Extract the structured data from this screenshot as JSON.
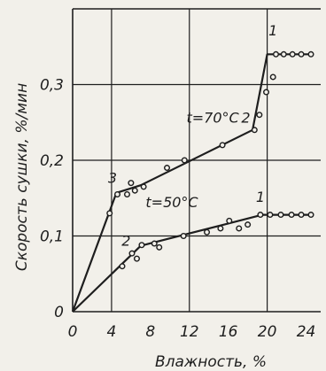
{
  "chart_data": {
    "type": "line",
    "xlabel": "Влажность, %",
    "ylabel": "Скорость сушки, %/мин",
    "xlim": [
      0,
      25.5
    ],
    "ylim": [
      0,
      0.4
    ],
    "x_ticks": [
      0,
      4,
      8,
      12,
      16,
      20,
      24
    ],
    "x_tick_labels": [
      "0",
      "4",
      "8",
      "12",
      "16",
      "20",
      "24"
    ],
    "y_ticks": [
      0,
      0.1,
      0.2,
      0.3
    ],
    "y_tick_labels": [
      "0",
      "0,1",
      "0,2",
      "0,3"
    ],
    "grid": true,
    "series": [
      {
        "name": "t=70°C",
        "line": [
          [
            0,
            0
          ],
          [
            4.5,
            0.157
          ],
          [
            7,
            0.167
          ],
          [
            18.5,
            0.24
          ],
          [
            20,
            0.34
          ],
          [
            24.5,
            0.34
          ]
        ],
        "points": [
          [
            3.8,
            0.13
          ],
          [
            4.6,
            0.155
          ],
          [
            5.6,
            0.155
          ],
          [
            6,
            0.17
          ],
          [
            6.4,
            0.16
          ],
          [
            7.3,
            0.165
          ],
          [
            9.7,
            0.19
          ],
          [
            11.5,
            0.2
          ],
          [
            15.4,
            0.22
          ],
          [
            18.7,
            0.24
          ],
          [
            19.2,
            0.26
          ],
          [
            19.9,
            0.29
          ],
          [
            20.6,
            0.31
          ],
          [
            20.9,
            0.34
          ],
          [
            21.7,
            0.34
          ],
          [
            22.6,
            0.34
          ],
          [
            23.5,
            0.34
          ],
          [
            24.5,
            0.34
          ]
        ]
      },
      {
        "name": "t=50°C",
        "line": [
          [
            0,
            0
          ],
          [
            7,
            0.087
          ],
          [
            19.5,
            0.128
          ],
          [
            24.5,
            0.128
          ]
        ],
        "points": [
          [
            5.1,
            0.06
          ],
          [
            6.1,
            0.077
          ],
          [
            6.6,
            0.07
          ],
          [
            7.1,
            0.088
          ],
          [
            8.4,
            0.09
          ],
          [
            8.9,
            0.085
          ],
          [
            11.4,
            0.1
          ],
          [
            13.8,
            0.105
          ],
          [
            15.2,
            0.11
          ],
          [
            16.1,
            0.12
          ],
          [
            17.1,
            0.11
          ],
          [
            18,
            0.115
          ],
          [
            19.3,
            0.128
          ],
          [
            20.3,
            0.128
          ],
          [
            21.4,
            0.128
          ],
          [
            22.5,
            0.128
          ],
          [
            23.5,
            0.128
          ],
          [
            24.5,
            0.128
          ]
        ]
      }
    ],
    "annotations": [
      {
        "text": "1",
        "x": 20.6,
        "y": 0.365
      },
      {
        "text": "2",
        "x": 17.8,
        "y": 0.25
      },
      {
        "text": "t=70°C",
        "x": 14.4,
        "y": 0.25
      },
      {
        "text": "3",
        "x": 4.1,
        "y": 0.17
      },
      {
        "text": "1",
        "x": 19.3,
        "y": 0.145
      },
      {
        "text": "t=50°C",
        "x": 10.2,
        "y": 0.138
      },
      {
        "text": "2",
        "x": 5.5,
        "y": 0.087
      }
    ]
  }
}
